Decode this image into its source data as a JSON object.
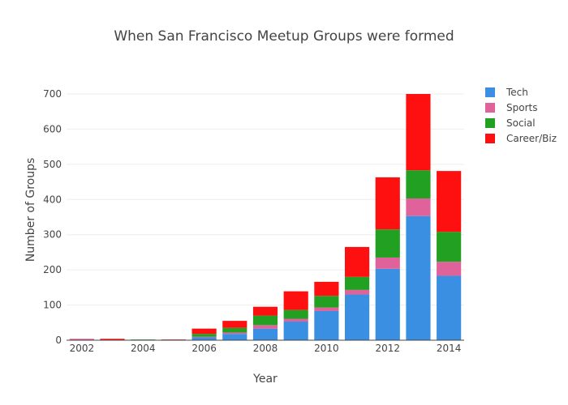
{
  "chart_data": {
    "type": "bar",
    "stacked": true,
    "title": "When San Francisco Meetup Groups were formed",
    "xlabel": "Year",
    "ylabel": "Number of Groups",
    "x": [
      2002,
      2003,
      2004,
      2005,
      2006,
      2007,
      2008,
      2009,
      2010,
      2011,
      2012,
      2013,
      2014
    ],
    "xticks": [
      "2002",
      "2004",
      "2006",
      "2008",
      "2010",
      "2012",
      "2014"
    ],
    "yticks": [
      "0",
      "100",
      "200",
      "300",
      "400",
      "500",
      "600",
      "700"
    ],
    "ylim": [
      0,
      700
    ],
    "series": [
      {
        "name": "Tech",
        "color": "#3a8fe2",
        "values": [
          0,
          0,
          0,
          0,
          8,
          18,
          33,
          53,
          83,
          130,
          203,
          353,
          183
        ]
      },
      {
        "name": "Sports",
        "color": "#e0629a",
        "values": [
          4,
          0,
          0,
          1,
          2,
          4,
          10,
          8,
          10,
          13,
          32,
          50,
          40
        ]
      },
      {
        "name": "Social",
        "color": "#21a021",
        "values": [
          0,
          1,
          2,
          0,
          8,
          13,
          27,
          25,
          33,
          37,
          80,
          80,
          85
        ]
      },
      {
        "name": "Career/Biz",
        "color": "#ff1010",
        "values": [
          0,
          3,
          0,
          1,
          15,
          20,
          25,
          53,
          40,
          85,
          148,
          217,
          173
        ]
      }
    ],
    "grid": true,
    "legend": "top-right"
  }
}
